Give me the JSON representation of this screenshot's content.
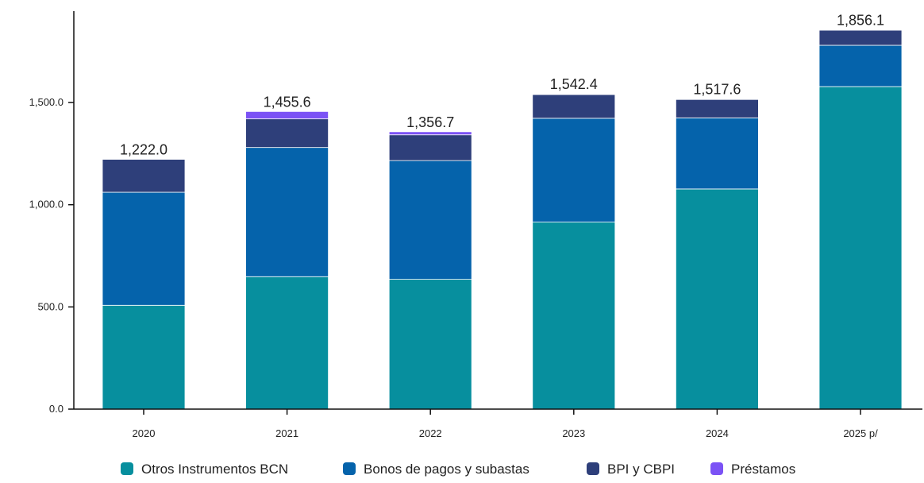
{
  "chart_data": {
    "type": "bar",
    "stacked": true,
    "categories": [
      "2020",
      "2021",
      "2022",
      "2023",
      "2024",
      "2025 p/"
    ],
    "series": [
      {
        "name": "Otros Instrumentos BCN",
        "color": "#078f9e",
        "values": [
          508,
          648,
          635,
          915,
          1077,
          1578
        ]
      },
      {
        "name": "Bonos de pagos y subastas",
        "color": "#0563ab",
        "values": [
          553,
          632,
          581,
          508,
          348,
          202
        ]
      },
      {
        "name": "BPI y CBPI",
        "color": "#2e3f7a",
        "values": [
          161,
          140,
          126,
          116,
          90,
          74
        ]
      },
      {
        "name": "Préstamos",
        "color": "#7b52f5",
        "values": [
          0,
          36,
          15,
          3,
          3,
          2
        ]
      }
    ],
    "totals": [
      1222.0,
      1455.6,
      1356.7,
      1542.4,
      1517.6,
      1856.1
    ],
    "total_labels": [
      "1,222.0",
      "1,455.6",
      "1,356.7",
      "1,542.4",
      "1,517.6",
      "1,856.1"
    ],
    "yticks": [
      0,
      500,
      1000,
      1500
    ],
    "ytick_labels": [
      "0.0",
      "500.0",
      "1,000.0",
      "1,500.0"
    ],
    "ylim": [
      0,
      1900
    ],
    "grid": false,
    "legend_position": "bottom"
  }
}
